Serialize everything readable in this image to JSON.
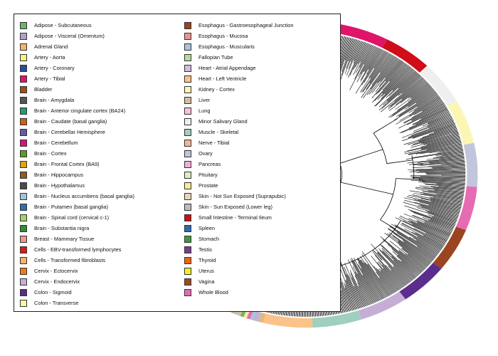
{
  "legend": {
    "column1": [
      {
        "label": "Adipose - Subcutaneous",
        "color": "#6db56d"
      },
      {
        "label": "Adipose - Visceral (Omentum)",
        "color": "#b39ecf"
      },
      {
        "label": "Adrenal Gland",
        "color": "#f5b36b"
      },
      {
        "label": "Artery - Aorta",
        "color": "#f7f27a"
      },
      {
        "label": "Artery - Coronary",
        "color": "#2b4c9c"
      },
      {
        "label": "Artery - Tibial",
        "color": "#e0156a"
      },
      {
        "label": "Bladder",
        "color": "#a24d1c"
      },
      {
        "label": "Brain - Amygdala",
        "color": "#555555"
      },
      {
        "label": "Brain - Anterior cingulate cortex (BA24)",
        "color": "#229a7a"
      },
      {
        "label": "Brain - Caudate (basal ganglia)",
        "color": "#cf5f14"
      },
      {
        "label": "Brain - Cerebellar Hemisphere",
        "color": "#6a5aa6"
      },
      {
        "label": "Brain - Cerebellum",
        "color": "#d91478"
      },
      {
        "label": "Brain - Cortex",
        "color": "#5e9a22"
      },
      {
        "label": "Brain - Frontal Cortex (BA9)",
        "color": "#e3a20e"
      },
      {
        "label": "Brain - Hippocampus",
        "color": "#8a5d22"
      },
      {
        "label": "Brain - Hypothalamus",
        "color": "#4a4a4a"
      },
      {
        "label": "Brain - Nucleus accumbens (basal ganglia)",
        "color": "#9ec3de"
      },
      {
        "label": "Brain - Putamen (basal ganglia)",
        "color": "#2d6fae"
      },
      {
        "label": "Brain - Spinal cord (cervical c-1)",
        "color": "#a6d06a"
      },
      {
        "label": "Brain - Substantia nigra",
        "color": "#2f8f2f"
      },
      {
        "label": "Breast - Mammary Tissue",
        "color": "#f09696"
      },
      {
        "label": "Cells - EBV-transformed lymphocytes",
        "color": "#d81b1b"
      },
      {
        "label": "Cells - Transformed fibroblasts",
        "color": "#f7b46a"
      },
      {
        "label": "Cervix - Ectocervix",
        "color": "#f27a10"
      },
      {
        "label": "Cervix - Endocervix",
        "color": "#c5aed6"
      },
      {
        "label": "Colon - Sigmoid",
        "color": "#5b2d8c"
      },
      {
        "label": "Colon - Transverse",
        "color": "#fbf8a0"
      }
    ],
    "column2": [
      {
        "label": "Esophagus - Gastroesophageal Junction",
        "color": "#9b4421"
      },
      {
        "label": "Esophagus - Mucosa",
        "color": "#f2918f"
      },
      {
        "label": "Esophagus - Muscularis",
        "color": "#a8c4de"
      },
      {
        "label": "Fallopian Tube",
        "color": "#b6dba0"
      },
      {
        "label": "Heart - Atrial Appendage",
        "color": "#d3bde3"
      },
      {
        "label": "Heart - Left Ventricle",
        "color": "#fbc38a"
      },
      {
        "label": "Kidney - Cortex",
        "color": "#fbf6b4"
      },
      {
        "label": "Liver",
        "color": "#d8bca0"
      },
      {
        "label": "Lung",
        "color": "#f9c4d8"
      },
      {
        "label": "Minor Salivary Gland",
        "color": "#efefef"
      },
      {
        "label": "Muscle - Skeletal",
        "color": "#9fcfbd"
      },
      {
        "label": "Nerve - Tibial",
        "color": "#f7b88e"
      },
      {
        "label": "Ovary",
        "color": "#c1c6dd"
      },
      {
        "label": "Pancreas",
        "color": "#eeb1d3"
      },
      {
        "label": "Pituitary",
        "color": "#dcefc0"
      },
      {
        "label": "Prostate",
        "color": "#fbe89a"
      },
      {
        "label": "Skin - Not Sun Exposed (Suprapubic)",
        "color": "#ebd4b4"
      },
      {
        "label": "Skin - Sun Exposed (Lower leg)",
        "color": "#bdbdbd"
      },
      {
        "label": "Small Intestine - Terminal Ileum",
        "color": "#d00d18"
      },
      {
        "label": "Spleen",
        "color": "#2c6cac"
      },
      {
        "label": "Stomach",
        "color": "#3e9a3e"
      },
      {
        "label": "Testis",
        "color": "#7b3b97"
      },
      {
        "label": "Thyroid",
        "color": "#f0640a"
      },
      {
        "label": "Uterus",
        "color": "#f7ee24"
      },
      {
        "label": "Vagina",
        "color": "#9c4a22"
      },
      {
        "label": "Whole Blood",
        "color": "#e66bb3"
      }
    ]
  },
  "ring_segments": [
    {
      "tissue": "Adipose - Subcutaneous",
      "color": "#6db56d"
    },
    {
      "tissue": "Colon - Transverse",
      "color": "#fbf8a0"
    },
    {
      "tissue": "Artery - Tibial",
      "color": "#e0156a"
    },
    {
      "tissue": "Small Intestine - Terminal Ileum",
      "color": "#d00d18"
    },
    {
      "tissue": "Minor Salivary Gland",
      "color": "#efefef"
    },
    {
      "tissue": "Kidney - Cortex",
      "color": "#fbf6b4"
    },
    {
      "tissue": "Ovary",
      "color": "#c1c6dd"
    },
    {
      "tissue": "Whole Blood",
      "color": "#e66bb3"
    },
    {
      "tissue": "Esophagus - Gastroesophageal Junction",
      "color": "#9b4421"
    },
    {
      "tissue": "Colon - Sigmoid",
      "color": "#5b2d8c"
    },
    {
      "tissue": "Cervix - Endocervix",
      "color": "#c5aed6"
    },
    {
      "tissue": "Muscle - Skeletal",
      "color": "#9fcfbd"
    },
    {
      "tissue": "Heart - Left Ventricle",
      "color": "#fbc38a"
    }
  ]
}
